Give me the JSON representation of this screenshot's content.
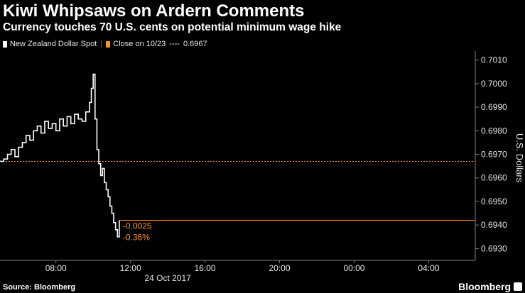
{
  "header": {
    "title": "Kiwi Whipsaws on Ardern Comments",
    "subtitle": "Currency touches 70 U.S. cents on potential minimum wage hike"
  },
  "legend": {
    "series_label": "New Zealand Dollar Spot",
    "close_label": "Close on 10/23",
    "close_dashes": "----",
    "close_value": "0.6967"
  },
  "footer": {
    "source": "Source: Bloomberg",
    "brand": "Bloomberg"
  },
  "colors": {
    "background": "#000000",
    "series": "#ffffff",
    "reference": "#f7941d",
    "grid": "#808080"
  },
  "chart_data": {
    "type": "line",
    "title": "Kiwi Whipsaws on Ardern Comments",
    "subtitle": "Currency touches 70 U.S. cents on potential minimum wage hike",
    "ylabel": "U.S. Dollars",
    "xlabel": "24 Oct 2017",
    "y_axis_side": "right",
    "ylim": [
      0.6925,
      0.7012
    ],
    "y_ticks": [
      0.693,
      0.694,
      0.695,
      0.696,
      0.697,
      0.698,
      0.699,
      0.7,
      0.701
    ],
    "y_tick_labels": [
      "0.6930",
      "0.6940",
      "0.6950",
      "0.6960",
      "0.6970",
      "0.6980",
      "0.6990",
      "0.7000",
      "0.7010"
    ],
    "xlim": [
      5.0,
      30.5
    ],
    "x_ticks": [
      8,
      12,
      16,
      20,
      24,
      28
    ],
    "x_tick_labels": [
      "08:00",
      "12:00",
      "16:00",
      "20:00",
      "00:00",
      "04:00"
    ],
    "date_label": "24 Oct 2017",
    "grid": false,
    "legend_position": "top-left",
    "reference_line": {
      "name": "Close on 10/23",
      "value": 0.6967
    },
    "last_value_line": {
      "value": 0.6942
    },
    "annotations": {
      "change": "-0.0025",
      "change_pct": "-0.36%"
    },
    "series": [
      {
        "name": "New Zealand Dollar Spot",
        "x": [
          5.0,
          5.2,
          5.4,
          5.6,
          5.8,
          6.0,
          6.2,
          6.4,
          6.6,
          6.8,
          7.0,
          7.2,
          7.4,
          7.6,
          7.8,
          8.0,
          8.2,
          8.4,
          8.6,
          8.8,
          9.0,
          9.2,
          9.4,
          9.6,
          9.8,
          9.9,
          10.0,
          10.1,
          10.2,
          10.3,
          10.4,
          10.5,
          10.6,
          10.7,
          10.8,
          10.9,
          11.0,
          11.1,
          11.2,
          11.3,
          11.4
        ],
        "values": [
          0.6967,
          0.6968,
          0.697,
          0.6972,
          0.6969,
          0.6973,
          0.6975,
          0.6978,
          0.6976,
          0.698,
          0.6982,
          0.6979,
          0.6984,
          0.6981,
          0.6983,
          0.698,
          0.6985,
          0.6982,
          0.6986,
          0.6983,
          0.6987,
          0.6985,
          0.6984,
          0.6988,
          0.6992,
          0.6998,
          0.7004,
          0.6985,
          0.6972,
          0.6966,
          0.6961,
          0.6964,
          0.6958,
          0.6955,
          0.6952,
          0.6948,
          0.6945,
          0.6941,
          0.6938,
          0.6935,
          0.6942
        ]
      }
    ]
  }
}
